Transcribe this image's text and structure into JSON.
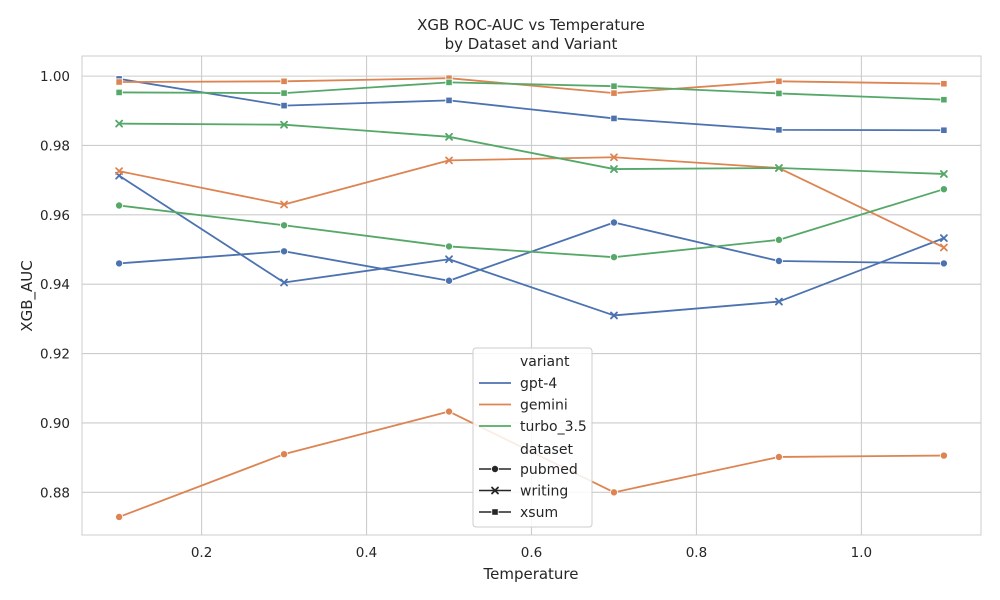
{
  "chart_data": {
    "type": "line",
    "title": "XGB ROC-AUC vs Temperature",
    "subtitle": "by Dataset and Variant",
    "xlabel": "Temperature",
    "ylabel": "XGB_AUC",
    "xlim": [
      0.055,
      1.145
    ],
    "ylim": [
      0.8677,
      1.0058
    ],
    "xticks": [
      0.2,
      0.4,
      0.6,
      0.8,
      1.0
    ],
    "xtick_labels": [
      "0.2",
      "0.4",
      "0.6",
      "0.8",
      "1.0"
    ],
    "yticks": [
      0.88,
      0.9,
      0.92,
      0.94,
      0.96,
      0.98,
      1.0
    ],
    "ytick_labels": [
      "0.88",
      "0.90",
      "0.92",
      "0.94",
      "0.96",
      "0.98",
      "1.00"
    ],
    "grid": true,
    "x": [
      0.1,
      0.3,
      0.5,
      0.7,
      0.9,
      1.1
    ],
    "series": [
      {
        "variant": "gpt-4",
        "dataset": "pubmed",
        "values": [
          0.946,
          0.9495,
          0.941,
          0.9578,
          0.9467,
          0.946
        ]
      },
      {
        "variant": "gpt-4",
        "dataset": "writing",
        "values": [
          0.9713,
          0.9405,
          0.9472,
          0.931,
          0.935,
          0.9533
        ]
      },
      {
        "variant": "gpt-4",
        "dataset": "xsum",
        "values": [
          0.9992,
          0.9915,
          0.993,
          0.9878,
          0.9845,
          0.9844
        ]
      },
      {
        "variant": "gemini",
        "dataset": "pubmed",
        "values": [
          0.8729,
          0.891,
          0.9033,
          0.88,
          0.8902,
          0.8906
        ]
      },
      {
        "variant": "gemini",
        "dataset": "writing",
        "values": [
          0.9726,
          0.963,
          0.9757,
          0.9766,
          0.9735,
          0.9506
        ]
      },
      {
        "variant": "gemini",
        "dataset": "xsum",
        "values": [
          0.9983,
          0.9985,
          0.9994,
          0.9951,
          0.9985,
          0.9978
        ]
      },
      {
        "variant": "turbo_3.5",
        "dataset": "pubmed",
        "values": [
          0.9627,
          0.957,
          0.9509,
          0.9478,
          0.9528,
          0.9674
        ]
      },
      {
        "variant": "turbo_3.5",
        "dataset": "writing",
        "values": [
          0.9863,
          0.986,
          0.9825,
          0.9732,
          0.9735,
          0.9718
        ]
      },
      {
        "variant": "turbo_3.5",
        "dataset": "xsum",
        "values": [
          0.9953,
          0.9951,
          0.9982,
          0.9971,
          0.995,
          0.9932
        ]
      }
    ],
    "legend": {
      "placement": "center-bottom",
      "hue_title": "variant",
      "hue_entries": [
        {
          "label": "gpt-4",
          "color": "#4c72b0"
        },
        {
          "label": "gemini",
          "color": "#dd8452"
        },
        {
          "label": "turbo_3.5",
          "color": "#55a868"
        }
      ],
      "style_title": "dataset",
      "style_entries": [
        {
          "label": "pubmed",
          "marker": "circle"
        },
        {
          "label": "writing",
          "marker": "x"
        },
        {
          "label": "xsum",
          "marker": "square"
        }
      ]
    }
  }
}
